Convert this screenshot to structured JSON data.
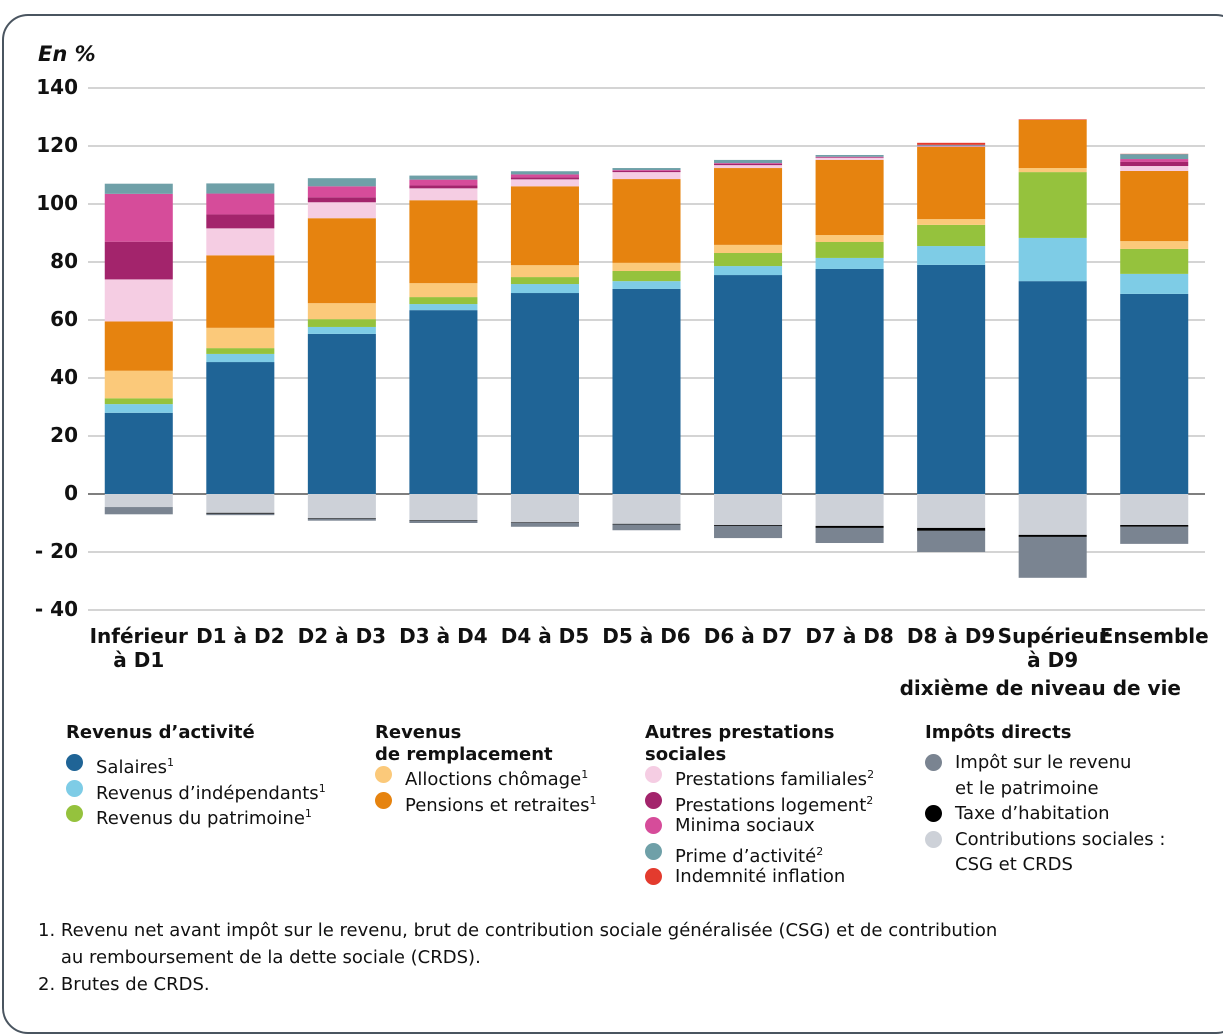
{
  "chart_data": {
    "type": "stacked_bar",
    "y_label": "En %",
    "x_label": "dixième de niveau de vie",
    "categories": [
      "Inférieur\nà D1",
      "D1 à D2",
      "D2 à D3",
      "D3 à D4",
      "D4 à D5",
      "D5 à D6",
      "D6 à D7",
      "D7 à D8",
      "D8 à D9",
      "Supérieur\nà D9",
      "Ensemble"
    ],
    "ylim": [
      -40,
      140
    ],
    "yticks": [
      {
        "value": -40,
        "label": "- 40"
      },
      {
        "value": -20,
        "label": "- 20"
      },
      0,
      20,
      40,
      60,
      80,
      100,
      120,
      140
    ],
    "grid": true,
    "legend_groups": [
      "Revenus d’activité",
      "Revenus\nde remplacement",
      "Autres prestations\nsociales",
      "Impôts directs"
    ],
    "series": [
      {
        "name": "Salaires",
        "note": "1",
        "color": "#1f6496",
        "values": [
          28,
          45.5,
          55.2,
          63.4,
          69.3,
          70.7,
          75.5,
          77.6,
          79,
          73.4,
          69
        ]
      },
      {
        "name": "Revenus d’indépendants",
        "note": "1",
        "color": "#7ecce6",
        "values": [
          3,
          2.8,
          2.4,
          2.1,
          3.1,
          2.7,
          3.1,
          3.8,
          6.5,
          14.9,
          6.9
        ]
      },
      {
        "name": "Revenus du patrimoine",
        "note": "1",
        "color": "#95c23d",
        "values": [
          2,
          2,
          2.7,
          2.4,
          2.4,
          3.5,
          4.5,
          5.5,
          7.3,
          22.7,
          8.6
        ]
      },
      {
        "name": "Alloctions chômage",
        "note": "1",
        "color": "#fbc97a",
        "values": [
          9.5,
          7,
          5.5,
          4.8,
          4.1,
          2.8,
          2.8,
          2.4,
          2,
          1.4,
          2.7
        ]
      },
      {
        "name": "Pensions et retraites",
        "note": "1",
        "color": "#e6830f",
        "values": [
          17,
          25,
          29.3,
          28.6,
          27.2,
          28.9,
          26.5,
          25.9,
          24.9,
          16.6,
          24.2
        ]
      },
      {
        "name": "Prestations familiales",
        "note": "2",
        "color": "#f5cde3",
        "values": [
          14.5,
          9.3,
          5.5,
          4.1,
          2.4,
          2.4,
          1,
          0.7,
          0.2,
          0,
          1.7
        ]
      },
      {
        "name": "Prestations logement",
        "note": "2",
        "color": "#a3246c",
        "values": [
          13,
          4.8,
          1.7,
          1,
          0.7,
          0.4,
          0.4,
          0.2,
          0.1,
          0,
          1.4
        ]
      },
      {
        "name": "Minima sociaux",
        "color": "#d64c9a",
        "values": [
          16.5,
          7.2,
          3.8,
          2,
          1,
          0.3,
          0.3,
          0.2,
          0.1,
          0,
          1
        ]
      },
      {
        "name": "Prime d’activité",
        "note": "2",
        "color": "#6fa0a8",
        "values": [
          3.5,
          3.5,
          2.8,
          1.4,
          1.1,
          0.7,
          1.1,
          0.6,
          0.3,
          0,
          1.7
        ]
      },
      {
        "name": "Indemnité inflation",
        "color": "#e33b2e",
        "values": [
          0,
          0,
          0,
          0,
          0,
          0,
          0,
          0,
          0.7,
          0.2,
          0.1
        ]
      },
      {
        "name": "Impôt sur le revenu\net le patrimoine",
        "color": "#7a8491",
        "values": [
          -2.5,
          -0.5,
          -0.7,
          -0.8,
          -1.4,
          -2,
          -4.2,
          -5.2,
          -7.3,
          -14.1,
          -5.9
        ]
      },
      {
        "name": "Taxe d’habitation",
        "color": "#000000",
        "values": [
          0,
          -0.3,
          -0.2,
          -0.2,
          -0.2,
          -0.2,
          -0.3,
          -0.7,
          -1,
          -0.7,
          -0.6
        ]
      },
      {
        "name": "Contributions sociales :\nCSG et CRDS",
        "color": "#cdd1d8",
        "values": [
          -4.5,
          -6.5,
          -8.3,
          -9,
          -9.7,
          -10.3,
          -10.7,
          -11,
          -11.7,
          -14.1,
          -10.7
        ]
      }
    ],
    "footnotes": [
      "1. Revenu net avant impôt sur le revenu, brut de contribution sociale généralisée (CSG) et de contribution\n    au remboursement de la dette sociale (CRDS).",
      "2. Brutes de CRDS."
    ]
  }
}
